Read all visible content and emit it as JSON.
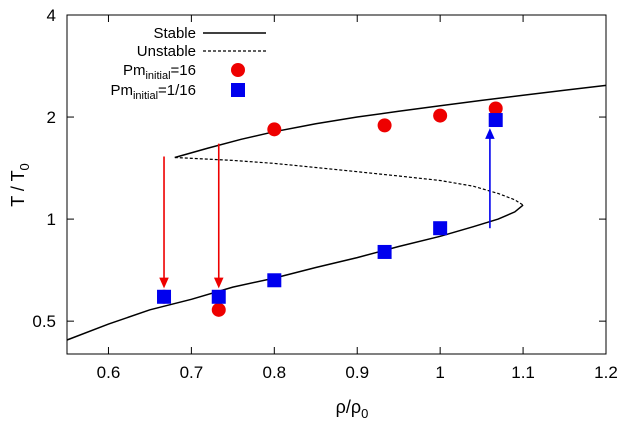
{
  "chart_data": {
    "type": "scatter",
    "title": "",
    "xlabel": "ρ/ρ₀",
    "ylabel": "T / T₀",
    "xlim": [
      0.55,
      1.2
    ],
    "ylim": [
      0.4,
      4
    ],
    "y_scale": "log2",
    "grid": false,
    "legend_position": "top-left",
    "x_ticks": [
      "0.6",
      "0.7",
      "0.8",
      "0.9",
      "1",
      "1.1",
      "1.2"
    ],
    "y_ticks": [
      "0.5",
      "1",
      "2",
      "4"
    ],
    "colors": {
      "stable": "#000000",
      "unstable": "#000000",
      "pm16": "#ee0000",
      "pm1_16": "#0000ee",
      "arrow_red": "#ee0000",
      "arrow_blue": "#0000ee"
    },
    "legend": [
      {
        "label": "Stable",
        "marker": "solid-line"
      },
      {
        "label": "Unstable",
        "marker": "dashed-line"
      },
      {
        "label_base": "Pm",
        "label_sub": "initial",
        "label_rest": "=16",
        "marker": "red-circle"
      },
      {
        "label_base": "Pm",
        "label_sub": "initial",
        "label_rest": "=1/16",
        "marker": "blue-square"
      }
    ],
    "series": [
      {
        "name": "Stable",
        "kind": "line",
        "style": "solid",
        "x": [
          0.68,
          0.72,
          0.76,
          0.8,
          0.85,
          0.9,
          0.95,
          1.0,
          1.05,
          1.1,
          1.15,
          1.2
        ],
        "y": [
          1.52,
          1.62,
          1.72,
          1.81,
          1.91,
          2.0,
          2.08,
          2.16,
          2.24,
          2.32,
          2.4,
          2.48
        ]
      },
      {
        "name": "Unstable",
        "kind": "line",
        "style": "dashed",
        "x": [
          0.68,
          0.75,
          0.8,
          0.85,
          0.9,
          0.95,
          1.0,
          1.04,
          1.07,
          1.09,
          1.1
        ],
        "y": [
          1.52,
          1.49,
          1.46,
          1.42,
          1.38,
          1.34,
          1.3,
          1.25,
          1.19,
          1.14,
          1.1
        ]
      },
      {
        "name": "Stable",
        "kind": "line",
        "style": "solid",
        "x": [
          1.1,
          1.09,
          1.07,
          1.04,
          1.0,
          0.95,
          0.9,
          0.85,
          0.8,
          0.75,
          0.7,
          0.65,
          0.6,
          0.55
        ],
        "y": [
          1.1,
          1.05,
          1.0,
          0.95,
          0.89,
          0.83,
          0.77,
          0.72,
          0.67,
          0.63,
          0.58,
          0.54,
          0.49,
          0.44
        ]
      },
      {
        "name": "Pm_initial=16",
        "kind": "points",
        "marker": "circle",
        "x": [
          0.667,
          0.733,
          0.8,
          0.933,
          1.0,
          1.067
        ],
        "y": [
          0.59,
          0.54,
          1.84,
          1.89,
          2.02,
          2.12
        ]
      },
      {
        "name": "Pm_initial=1/16",
        "kind": "points",
        "marker": "square",
        "x": [
          0.667,
          0.733,
          0.8,
          0.933,
          1.0,
          1.067
        ],
        "y": [
          0.59,
          0.59,
          0.66,
          0.8,
          0.94,
          1.96
        ]
      }
    ],
    "arrows": [
      {
        "color": "red",
        "x": 0.667,
        "y_from": 1.53,
        "y_to": 0.63
      },
      {
        "color": "red",
        "x": 0.733,
        "y_from": 1.67,
        "y_to": 0.63
      },
      {
        "color": "blue",
        "x": 1.06,
        "y_from": 0.94,
        "y_to": 1.84
      }
    ]
  }
}
